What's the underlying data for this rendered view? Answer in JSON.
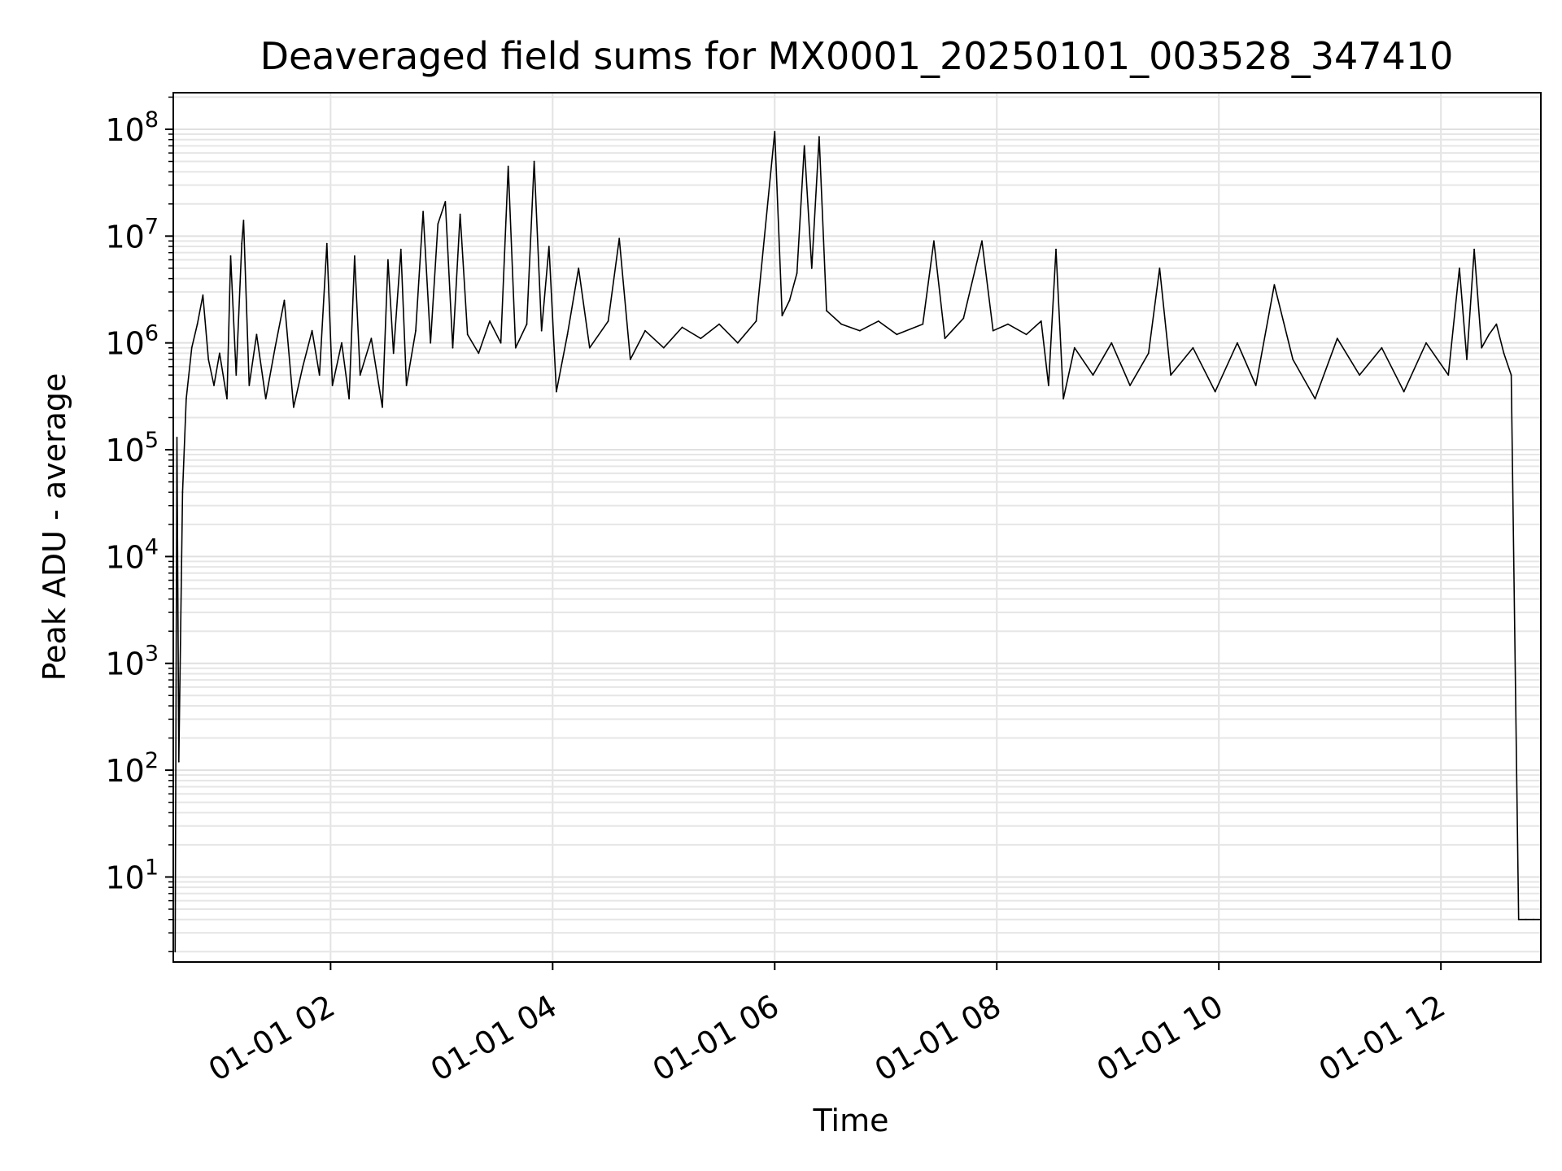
{
  "chart_data": {
    "type": "line",
    "title": "Deaveraged field sums for MX0001_20250101_003528_347410",
    "xlabel": "Time",
    "ylabel": "Peak ADU - average",
    "x_scale": "time",
    "y_scale": "log",
    "xlim": [
      "2025-01-01 00:35",
      "2025-01-01 12:54"
    ],
    "ylim": [
      1.6,
      220000000.0
    ],
    "grid": true,
    "legend": "none",
    "x_ticks": [
      {
        "label": "01-01 02",
        "value": "2025-01-01 02:00"
      },
      {
        "label": "01-01 04",
        "value": "2025-01-01 04:00"
      },
      {
        "label": "01-01 06",
        "value": "2025-01-01 06:00"
      },
      {
        "label": "01-01 08",
        "value": "2025-01-01 08:00"
      },
      {
        "label": "01-01 10",
        "value": "2025-01-01 10:00"
      },
      {
        "label": "01-01 12",
        "value": "2025-01-01 12:00"
      }
    ],
    "y_ticks": [
      {
        "base": "10",
        "exp": "1",
        "value": 10
      },
      {
        "base": "10",
        "exp": "2",
        "value": 100
      },
      {
        "base": "10",
        "exp": "3",
        "value": 1000
      },
      {
        "base": "10",
        "exp": "4",
        "value": 10000
      },
      {
        "base": "10",
        "exp": "5",
        "value": 100000
      },
      {
        "base": "10",
        "exp": "6",
        "value": 1000000
      },
      {
        "base": "10",
        "exp": "7",
        "value": 10000000
      },
      {
        "base": "10",
        "exp": "8",
        "value": 100000000
      }
    ],
    "series": [
      {
        "color": "#000000",
        "points": [
          [
            "2025-01-01 00:36",
            2
          ],
          [
            "2025-01-01 00:37",
            130000
          ],
          [
            "2025-01-01 00:38",
            120
          ],
          [
            "2025-01-01 00:40",
            40000
          ],
          [
            "2025-01-01 00:42",
            300000
          ],
          [
            "2025-01-01 00:45",
            900000
          ],
          [
            "2025-01-01 00:48",
            1500000
          ],
          [
            "2025-01-01 00:51",
            2800000
          ],
          [
            "2025-01-01 00:54",
            700000
          ],
          [
            "2025-01-01 00:57",
            400000
          ],
          [
            "2025-01-01 01:00",
            800000
          ],
          [
            "2025-01-01 01:04",
            300000
          ],
          [
            "2025-01-01 01:06",
            6500000
          ],
          [
            "2025-01-01 01:09",
            500000
          ],
          [
            "2025-01-01 01:12",
            8500000
          ],
          [
            "2025-01-01 01:13",
            14000000
          ],
          [
            "2025-01-01 01:16",
            400000
          ],
          [
            "2025-01-01 01:20",
            1200000
          ],
          [
            "2025-01-01 01:25",
            300000
          ],
          [
            "2025-01-01 01:30",
            900000
          ],
          [
            "2025-01-01 01:35",
            2500000
          ],
          [
            "2025-01-01 01:40",
            250000
          ],
          [
            "2025-01-01 01:45",
            600000
          ],
          [
            "2025-01-01 01:50",
            1300000
          ],
          [
            "2025-01-01 01:54",
            500000
          ],
          [
            "2025-01-01 01:58",
            8500000
          ],
          [
            "2025-01-01 02:01",
            400000
          ],
          [
            "2025-01-01 02:06",
            1000000
          ],
          [
            "2025-01-01 02:10",
            300000
          ],
          [
            "2025-01-01 02:13",
            6500000
          ],
          [
            "2025-01-01 02:16",
            500000
          ],
          [
            "2025-01-01 02:22",
            1100000
          ],
          [
            "2025-01-01 02:28",
            250000
          ],
          [
            "2025-01-01 02:31",
            6000000
          ],
          [
            "2025-01-01 02:34",
            800000
          ],
          [
            "2025-01-01 02:38",
            7500000
          ],
          [
            "2025-01-01 02:41",
            400000
          ],
          [
            "2025-01-01 02:46",
            1300000
          ],
          [
            "2025-01-01 02:50",
            17000000
          ],
          [
            "2025-01-01 02:54",
            1000000
          ],
          [
            "2025-01-01 02:58",
            13000000
          ],
          [
            "2025-01-01 03:02",
            21000000
          ],
          [
            "2025-01-01 03:06",
            900000
          ],
          [
            "2025-01-01 03:10",
            16000000
          ],
          [
            "2025-01-01 03:14",
            1200000
          ],
          [
            "2025-01-01 03:20",
            800000
          ],
          [
            "2025-01-01 03:26",
            1600000
          ],
          [
            "2025-01-01 03:32",
            1000000
          ],
          [
            "2025-01-01 03:36",
            45000000
          ],
          [
            "2025-01-01 03:40",
            900000
          ],
          [
            "2025-01-01 03:46",
            1500000
          ],
          [
            "2025-01-01 03:50",
            50000000
          ],
          [
            "2025-01-01 03:54",
            1300000
          ],
          [
            "2025-01-01 03:58",
            8000000
          ],
          [
            "2025-01-01 04:02",
            350000
          ],
          [
            "2025-01-01 04:08",
            1200000
          ],
          [
            "2025-01-01 04:14",
            5000000
          ],
          [
            "2025-01-01 04:20",
            900000
          ],
          [
            "2025-01-01 04:30",
            1600000
          ],
          [
            "2025-01-01 04:36",
            9500000
          ],
          [
            "2025-01-01 04:42",
            700000
          ],
          [
            "2025-01-01 04:50",
            1300000
          ],
          [
            "2025-01-01 05:00",
            900000
          ],
          [
            "2025-01-01 05:10",
            1400000
          ],
          [
            "2025-01-01 05:20",
            1100000
          ],
          [
            "2025-01-01 05:30",
            1500000
          ],
          [
            "2025-01-01 05:40",
            1000000
          ],
          [
            "2025-01-01 05:50",
            1600000
          ],
          [
            "2025-01-01 06:00",
            95000000
          ],
          [
            "2025-01-01 06:04",
            1800000
          ],
          [
            "2025-01-01 06:08",
            2500000
          ],
          [
            "2025-01-01 06:12",
            4500000
          ],
          [
            "2025-01-01 06:16",
            70000000
          ],
          [
            "2025-01-01 06:20",
            5000000
          ],
          [
            "2025-01-01 06:24",
            85000000
          ],
          [
            "2025-01-01 06:28",
            2000000
          ],
          [
            "2025-01-01 06:36",
            1500000
          ],
          [
            "2025-01-01 06:46",
            1300000
          ],
          [
            "2025-01-01 06:56",
            1600000
          ],
          [
            "2025-01-01 07:06",
            1200000
          ],
          [
            "2025-01-01 07:20",
            1500000
          ],
          [
            "2025-01-01 07:26",
            9000000
          ],
          [
            "2025-01-01 07:32",
            1100000
          ],
          [
            "2025-01-01 07:42",
            1700000
          ],
          [
            "2025-01-01 07:52",
            9000000
          ],
          [
            "2025-01-01 07:58",
            1300000
          ],
          [
            "2025-01-01 08:06",
            1500000
          ],
          [
            "2025-01-01 08:16",
            1200000
          ],
          [
            "2025-01-01 08:24",
            1600000
          ],
          [
            "2025-01-01 08:28",
            400000
          ],
          [
            "2025-01-01 08:32",
            7500000
          ],
          [
            "2025-01-01 08:36",
            300000
          ],
          [
            "2025-01-01 08:42",
            900000
          ],
          [
            "2025-01-01 08:52",
            500000
          ],
          [
            "2025-01-01 09:02",
            1000000
          ],
          [
            "2025-01-01 09:12",
            400000
          ],
          [
            "2025-01-01 09:22",
            800000
          ],
          [
            "2025-01-01 09:28",
            5000000
          ],
          [
            "2025-01-01 09:34",
            500000
          ],
          [
            "2025-01-01 09:46",
            900000
          ],
          [
            "2025-01-01 09:58",
            350000
          ],
          [
            "2025-01-01 10:10",
            1000000
          ],
          [
            "2025-01-01 10:20",
            400000
          ],
          [
            "2025-01-01 10:30",
            3500000
          ],
          [
            "2025-01-01 10:40",
            700000
          ],
          [
            "2025-01-01 10:52",
            300000
          ],
          [
            "2025-01-01 11:04",
            1100000
          ],
          [
            "2025-01-01 11:16",
            500000
          ],
          [
            "2025-01-01 11:28",
            900000
          ],
          [
            "2025-01-01 11:40",
            350000
          ],
          [
            "2025-01-01 11:52",
            1000000
          ],
          [
            "2025-01-01 12:04",
            500000
          ],
          [
            "2025-01-01 12:10",
            5000000
          ],
          [
            "2025-01-01 12:14",
            700000
          ],
          [
            "2025-01-01 12:18",
            7500000
          ],
          [
            "2025-01-01 12:22",
            900000
          ],
          [
            "2025-01-01 12:26",
            1200000
          ],
          [
            "2025-01-01 12:30",
            1500000
          ],
          [
            "2025-01-01 12:34",
            800000
          ],
          [
            "2025-01-01 12:38",
            500000
          ],
          [
            "2025-01-01 12:42",
            4
          ],
          [
            "2025-01-01 12:46",
            4
          ],
          [
            "2025-01-01 12:50",
            4
          ],
          [
            "2025-01-01 12:54",
            4
          ]
        ]
      }
    ]
  }
}
